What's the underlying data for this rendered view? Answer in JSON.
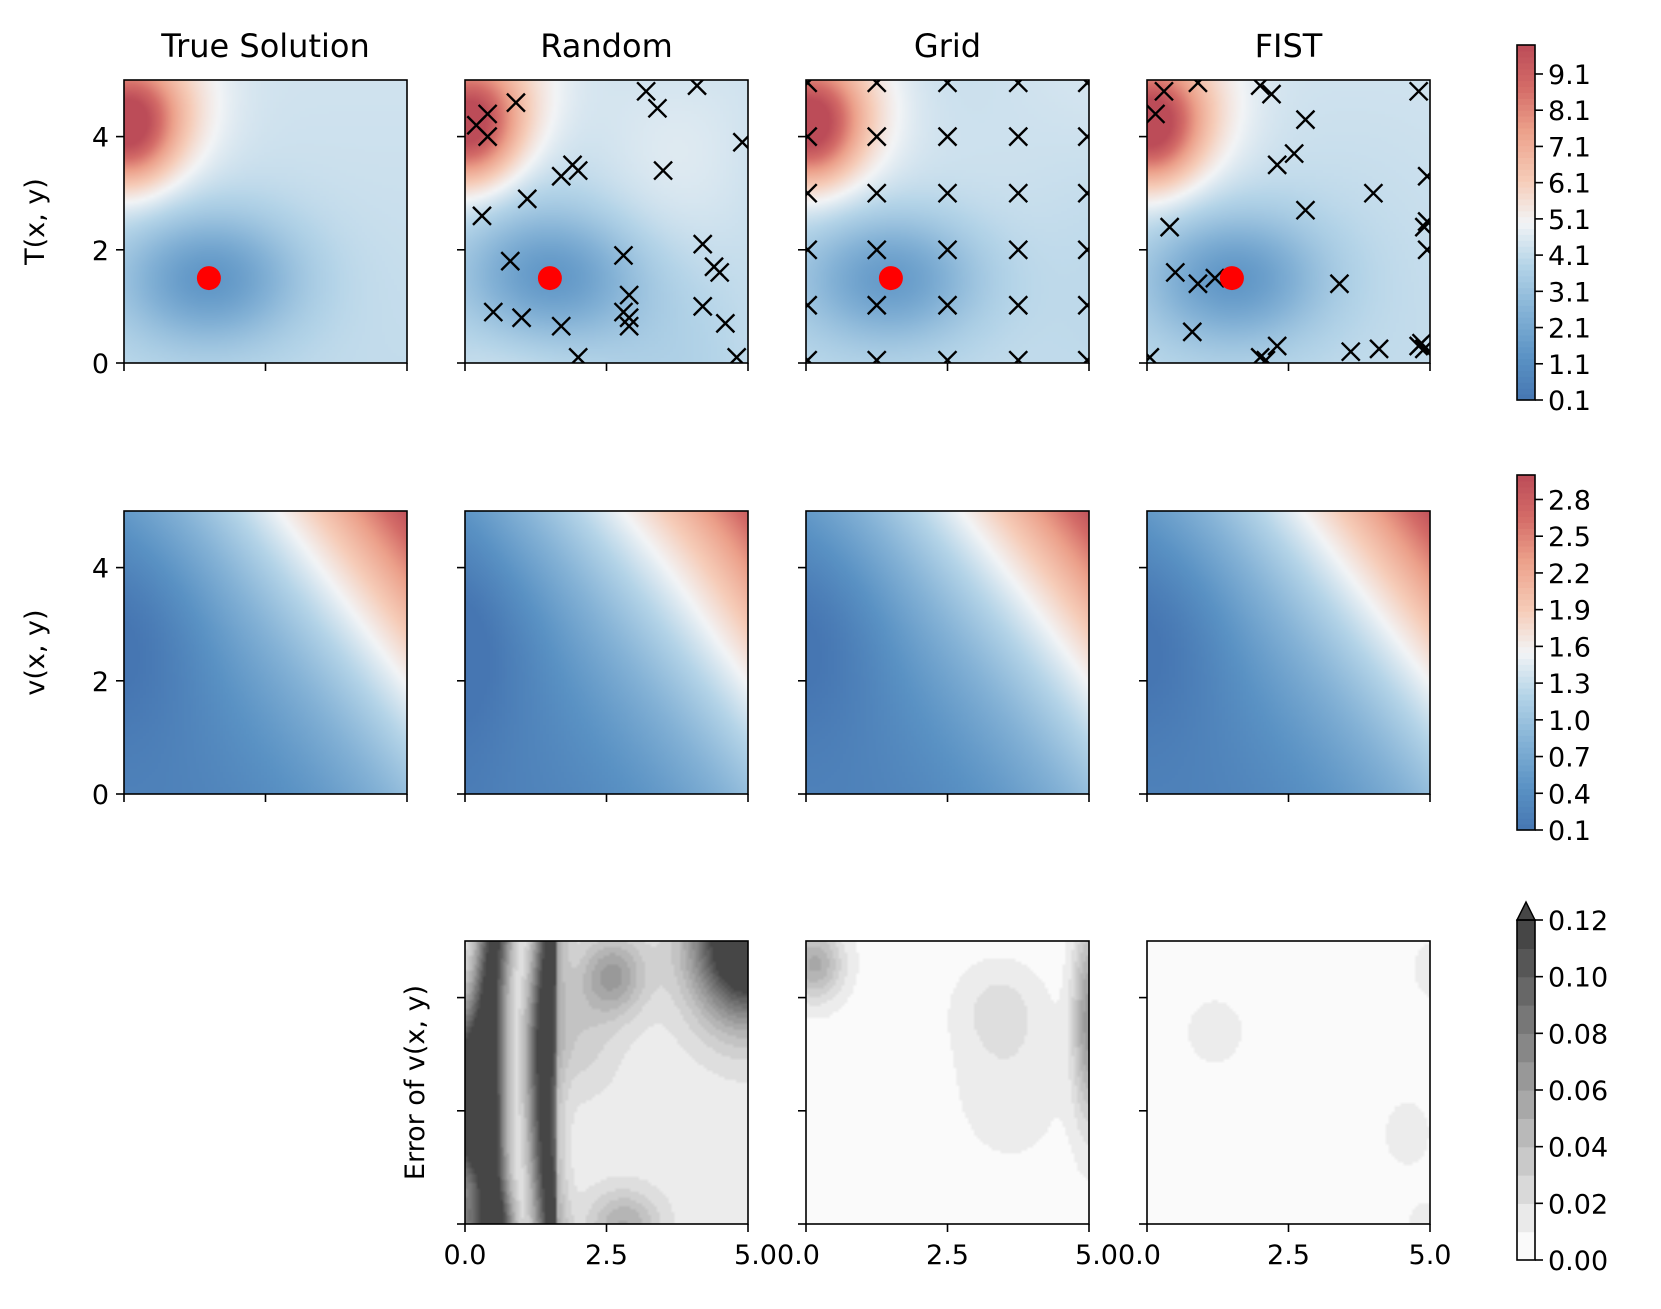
{
  "chart_data": {
    "type": "heatmap",
    "columns": [
      "True Solution",
      "Random",
      "Grid",
      "FIST"
    ],
    "row_labels": [
      "T(x, y)",
      "v(x, y)",
      "Error of v(x, y)"
    ],
    "x_range": [
      0,
      5
    ],
    "y_range": [
      0,
      5
    ],
    "x_ticks": [
      "0.0",
      "2.5",
      "5.0"
    ],
    "xtick_labels_rendered": [
      "0.0",
      "2.5",
      "5.00.0",
      "2.5",
      "5.00.0",
      "2.5",
      "5.0"
    ],
    "y_ticks": [
      "0",
      "2",
      "4"
    ],
    "source_point": {
      "x": 1.5,
      "y": 1.5,
      "color": "#ff0000"
    },
    "colorbars": {
      "temperature": {
        "ticks": [
          "0.1",
          "1.1",
          "2.1",
          "3.1",
          "4.1",
          "5.1",
          "6.1",
          "7.1",
          "8.1",
          "9.1"
        ],
        "range": [
          0.1,
          9.9
        ],
        "cmap": "RdBu_r"
      },
      "velocity": {
        "ticks": [
          "0.1",
          "0.4",
          "0.7",
          "1.0",
          "1.3",
          "1.6",
          "1.9",
          "2.2",
          "2.5",
          "2.8"
        ],
        "range": [
          0.1,
          3.0
        ],
        "cmap": "RdBu_r"
      },
      "error": {
        "ticks": [
          "0.00",
          "0.02",
          "0.04",
          "0.06",
          "0.08",
          "0.10",
          "0.12"
        ],
        "range": [
          0.0,
          0.12
        ],
        "cmap": "Greys",
        "extend": "max"
      }
    },
    "sensors": {
      "Random": [
        [
          0.2,
          4.2
        ],
        [
          0.4,
          4.4
        ],
        [
          0.4,
          4.0
        ],
        [
          0.9,
          4.6
        ],
        [
          0.3,
          2.6
        ],
        [
          1.1,
          2.9
        ],
        [
          0.8,
          1.8
        ],
        [
          0.5,
          0.9
        ],
        [
          1.0,
          0.8
        ],
        [
          1.7,
          3.3
        ],
        [
          1.9,
          3.5
        ],
        [
          2.0,
          3.4
        ],
        [
          1.7,
          0.65
        ],
        [
          2.0,
          0.1
        ],
        [
          2.8,
          1.9
        ],
        [
          2.9,
          1.2
        ],
        [
          2.8,
          0.9
        ],
        [
          2.9,
          0.8
        ],
        [
          2.9,
          0.65
        ],
        [
          3.2,
          4.8
        ],
        [
          3.4,
          4.5
        ],
        [
          3.5,
          3.4
        ],
        [
          4.1,
          4.9
        ],
        [
          4.9,
          3.9
        ],
        [
          4.2,
          2.1
        ],
        [
          4.4,
          1.7
        ],
        [
          4.5,
          1.6
        ],
        [
          4.2,
          1.0
        ],
        [
          4.6,
          0.7
        ],
        [
          4.8,
          0.1
        ]
      ],
      "Grid": [
        [
          0.03,
          0.05
        ],
        [
          0.03,
          1.02
        ],
        [
          0.03,
          2.0
        ],
        [
          0.03,
          3.0
        ],
        [
          0.03,
          4.0
        ],
        [
          0.03,
          4.95
        ],
        [
          1.25,
          0.05
        ],
        [
          1.25,
          1.02
        ],
        [
          1.25,
          2.0
        ],
        [
          1.25,
          3.0
        ],
        [
          1.25,
          4.0
        ],
        [
          1.25,
          4.95
        ],
        [
          2.5,
          0.05
        ],
        [
          2.5,
          1.02
        ],
        [
          2.5,
          2.0
        ],
        [
          2.5,
          3.0
        ],
        [
          2.5,
          4.0
        ],
        [
          2.5,
          4.95
        ],
        [
          3.75,
          0.05
        ],
        [
          3.75,
          1.02
        ],
        [
          3.75,
          2.0
        ],
        [
          3.75,
          3.0
        ],
        [
          3.75,
          4.0
        ],
        [
          3.75,
          4.95
        ],
        [
          4.97,
          0.05
        ],
        [
          4.97,
          1.02
        ],
        [
          4.97,
          2.0
        ],
        [
          4.97,
          3.0
        ],
        [
          4.97,
          4.0
        ],
        [
          4.97,
          4.95
        ]
      ],
      "FIST": [
        [
          0.15,
          4.4
        ],
        [
          0.3,
          4.8
        ],
        [
          0.9,
          4.95
        ],
        [
          2.0,
          4.9
        ],
        [
          2.2,
          4.75
        ],
        [
          2.3,
          3.5
        ],
        [
          2.6,
          3.7
        ],
        [
          2.8,
          4.3
        ],
        [
          2.8,
          2.7
        ],
        [
          0.4,
          2.4
        ],
        [
          0.5,
          1.6
        ],
        [
          0.9,
          1.4
        ],
        [
          0.8,
          0.55
        ],
        [
          2.1,
          0.05
        ],
        [
          2.3,
          0.3
        ],
        [
          3.4,
          1.4
        ],
        [
          4.0,
          3.0
        ],
        [
          4.8,
          4.8
        ],
        [
          4.95,
          3.3
        ],
        [
          4.9,
          2.4
        ],
        [
          4.95,
          2.0
        ],
        [
          3.6,
          0.2
        ],
        [
          4.1,
          0.25
        ],
        [
          4.8,
          0.3
        ],
        [
          4.9,
          0.25
        ],
        [
          0.05,
          0.1
        ],
        [
          2.0,
          0.1
        ],
        [
          1.2,
          1.5
        ],
        [
          4.95,
          2.5
        ],
        [
          4.85,
          0.35
        ]
      ]
    }
  }
}
